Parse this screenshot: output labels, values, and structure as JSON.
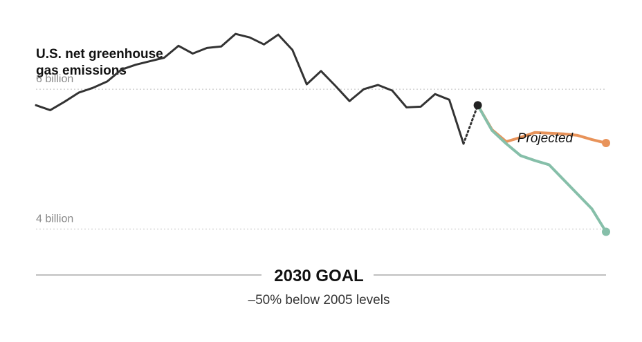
{
  "chart_data": {
    "type": "line",
    "title_lines": [
      "U.S. net greenhouse",
      "gas emissions"
    ],
    "y_ticks": [
      {
        "value": 6,
        "label": "6 billion"
      },
      {
        "value": 4,
        "label": "4 billion"
      }
    ],
    "ylim": [
      3.55,
      6.9
    ],
    "xlim": [
      1990,
      2030
    ],
    "grid": true,
    "historical": {
      "name": "",
      "color": "#333333",
      "x": [
        1990,
        1991,
        1992,
        1993,
        1994,
        1995,
        1996,
        1997,
        1998,
        1999,
        2000,
        2001,
        2002,
        2003,
        2004,
        2005,
        2006,
        2007,
        2008,
        2009,
        2010,
        2011,
        2012,
        2013,
        2014,
        2015,
        2016,
        2017,
        2018,
        2019,
        2020
      ],
      "y": [
        5.77,
        5.7,
        5.82,
        5.95,
        6.02,
        6.11,
        6.28,
        6.35,
        6.4,
        6.45,
        6.62,
        6.51,
        6.59,
        6.61,
        6.79,
        6.74,
        6.64,
        6.78,
        6.56,
        6.07,
        6.26,
        6.05,
        5.83,
        6.0,
        6.06,
        5.98,
        5.74,
        5.75,
        5.93,
        5.85,
        5.22
      ]
    },
    "estimate": {
      "x": [
        2020,
        2021
      ],
      "y": [
        5.22,
        5.77
      ],
      "style": "dotted",
      "color": "#333333"
    },
    "projected_label": "Projected",
    "projections": [
      {
        "name": "",
        "color": "#e8935a",
        "x": [
          2021,
          2022,
          2023,
          2024,
          2025,
          2026,
          2027,
          2028,
          2029,
          2030
        ],
        "y": [
          5.77,
          5.42,
          5.25,
          5.31,
          5.38,
          5.37,
          5.36,
          5.34,
          5.28,
          5.23
        ]
      },
      {
        "name": "",
        "color": "#86bfa9",
        "x": [
          2021,
          2022,
          2023,
          2024,
          2025,
          2026,
          2027,
          2028,
          2029,
          2030
        ],
        "y": [
          5.77,
          5.41,
          5.22,
          5.05,
          4.98,
          4.92,
          4.71,
          4.5,
          4.29,
          3.96
        ]
      }
    ],
    "annotation": {
      "title": "2030 GOAL",
      "subtitle": "–50% below 2005 levels"
    }
  }
}
